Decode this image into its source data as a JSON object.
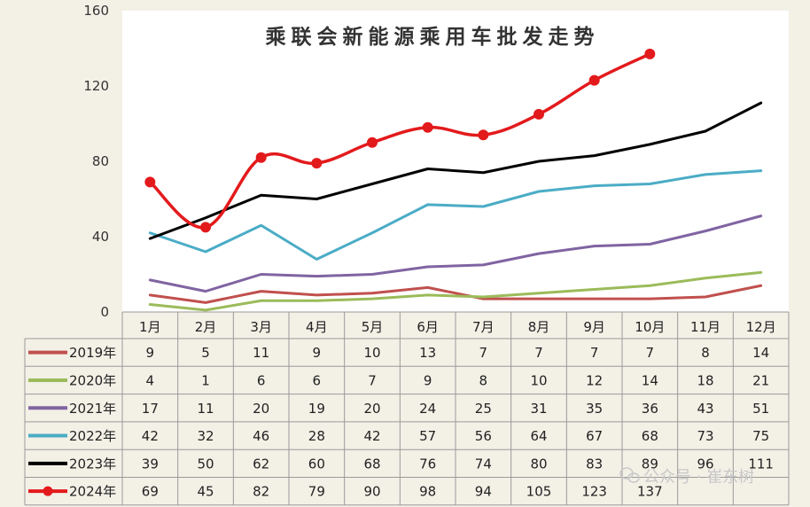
{
  "chart_data": {
    "type": "line",
    "title": "乘联会新能源乘用车批发走势",
    "categories": [
      "1月",
      "2月",
      "3月",
      "4月",
      "5月",
      "6月",
      "7月",
      "8月",
      "9月",
      "10月",
      "11月",
      "12月"
    ],
    "ylim": [
      0,
      160
    ],
    "yticks": [
      0,
      40,
      80,
      120,
      160
    ],
    "grid": false,
    "legend": "data-table",
    "series": [
      {
        "name": "2019年",
        "color": "#c0504d",
        "values": [
          9,
          5,
          11,
          9,
          10,
          13,
          7,
          7,
          7,
          7,
          8,
          14
        ]
      },
      {
        "name": "2020年",
        "color": "#9bbb59",
        "values": [
          4,
          1,
          6,
          6,
          7,
          9,
          8,
          10,
          12,
          14,
          18,
          21
        ]
      },
      {
        "name": "2021年",
        "color": "#8064a2",
        "values": [
          17,
          11,
          20,
          19,
          20,
          24,
          25,
          31,
          35,
          36,
          43,
          51
        ]
      },
      {
        "name": "2022年",
        "color": "#4bacc6",
        "values": [
          42,
          32,
          46,
          28,
          42,
          57,
          56,
          64,
          67,
          68,
          73,
          75
        ]
      },
      {
        "name": "2023年",
        "color": "#000000",
        "values": [
          39,
          50,
          62,
          60,
          68,
          76,
          74,
          80,
          83,
          89,
          96,
          111
        ]
      },
      {
        "name": "2024年",
        "color": "#e31a1c",
        "markers": true,
        "values": [
          69,
          45,
          82,
          79,
          90,
          98,
          94,
          105,
          123,
          137,
          null,
          null
        ]
      }
    ]
  },
  "watermark": "公众号 · 崔东树",
  "watermark_icon": "wechat-icon"
}
